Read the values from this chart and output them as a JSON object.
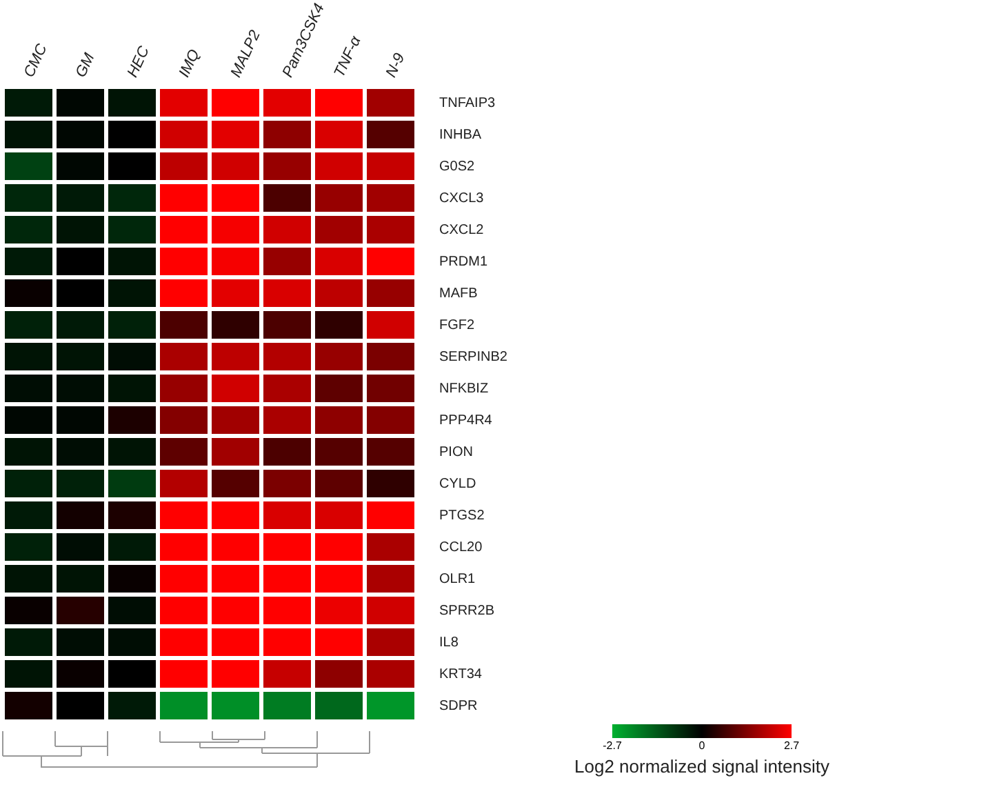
{
  "chart_data": {
    "type": "heatmap",
    "clabel": "Log2 normalized signal intensity",
    "categories": [
      "CMC",
      "GM",
      "HEC",
      "IMQ",
      "MALP2",
      "Pam3CSK4",
      "TNF-α",
      "N-9"
    ],
    "y_categories": [
      "TNFAIP3",
      "INHBA",
      "G0S2",
      "CXCL3",
      "CXCL2",
      "PRDM1",
      "MAFB",
      "FGF2",
      "SERPINB2",
      "NFKBIZ",
      "PPP4R4",
      "PION",
      "CYLD",
      "PTGS2",
      "CCL20",
      "OLR1",
      "SPRR2B",
      "IL8",
      "KRT34",
      "SDPR"
    ],
    "cells": [
      [
        -0.4,
        -0.1,
        -0.3,
        2.4,
        2.7,
        2.4,
        2.7,
        1.7
      ],
      [
        -0.3,
        -0.1,
        0,
        2.2,
        2.4,
        1.5,
        2.3,
        0.9
      ],
      [
        -1.0,
        -0.1,
        0,
        2.0,
        2.2,
        1.6,
        2.2,
        2.1
      ],
      [
        -0.6,
        -0.4,
        -0.6,
        2.7,
        2.7,
        0.8,
        1.6,
        1.7
      ],
      [
        -0.6,
        -0.3,
        -0.6,
        2.7,
        2.6,
        2.2,
        1.7,
        1.8
      ],
      [
        -0.4,
        0,
        -0.3,
        2.7,
        2.6,
        1.6,
        2.3,
        2.7
      ],
      [
        0.1,
        0,
        -0.3,
        2.7,
        2.4,
        2.3,
        2.0,
        1.6
      ],
      [
        -0.5,
        -0.4,
        -0.5,
        0.8,
        0.5,
        0.8,
        0.5,
        2.2
      ],
      [
        -0.3,
        -0.3,
        -0.2,
        1.8,
        2.0,
        1.9,
        1.6,
        1.3
      ],
      [
        -0.2,
        -0.2,
        -0.3,
        1.6,
        2.2,
        1.8,
        1.0,
        1.2
      ],
      [
        -0.1,
        -0.1,
        0.3,
        1.4,
        1.7,
        1.8,
        1.5,
        1.4
      ],
      [
        -0.3,
        -0.2,
        -0.3,
        1.0,
        1.7,
        0.8,
        0.9,
        0.9
      ],
      [
        -0.5,
        -0.5,
        -0.9,
        1.9,
        0.9,
        1.3,
        1.0,
        0.5
      ],
      [
        -0.4,
        0.2,
        0.3,
        2.7,
        2.7,
        2.3,
        2.3,
        2.7
      ],
      [
        -0.5,
        -0.2,
        -0.4,
        2.7,
        2.7,
        2.7,
        2.7,
        1.8
      ],
      [
        -0.3,
        -0.3,
        0.1,
        2.7,
        2.7,
        2.7,
        2.7,
        1.8
      ],
      [
        0.1,
        0.4,
        -0.2,
        2.7,
        2.7,
        2.7,
        2.5,
        2.2
      ],
      [
        -0.4,
        -0.2,
        -0.2,
        2.7,
        2.7,
        2.7,
        2.7,
        1.8
      ],
      [
        -0.3,
        0.1,
        0,
        2.7,
        2.7,
        2.1,
        1.5,
        1.8
      ],
      [
        0.2,
        0,
        -0.4,
        -2.2,
        -2.2,
        -1.9,
        -1.6,
        -2.3
      ]
    ],
    "clim": [
      -2.7,
      2.7
    ],
    "cticks": [
      -2.7,
      0,
      2.7
    ]
  }
}
